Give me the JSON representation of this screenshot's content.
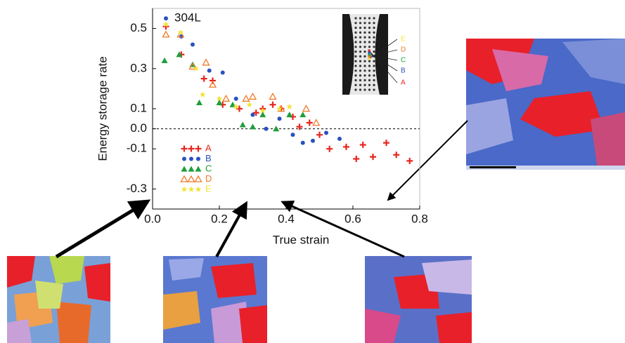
{
  "chart_data": {
    "type": "scatter",
    "annotation": "304L",
    "xlabel": "True strain",
    "ylabel": "Energy storage rate",
    "xlim": [
      0,
      0.8
    ],
    "ylim": [
      -0.4,
      0.6
    ],
    "xticks": [
      {
        "value": 0,
        "label": "0.0"
      },
      0.2,
      0.4,
      0.6,
      0.8
    ],
    "yticks": [
      0.5,
      0.3,
      0.1,
      {
        "value": 0,
        "label": "0.0"
      },
      -0.1,
      -0.3
    ],
    "zero_line": true,
    "legend": "lower left",
    "series": [
      {
        "name": "A",
        "color": "#e8251f",
        "marker": "plus",
        "x": [
          0.04,
          0.086,
          0.154,
          0.18,
          0.21,
          0.26,
          0.31,
          0.33,
          0.36,
          0.385,
          0.42,
          0.44,
          0.47,
          0.5,
          0.53,
          0.58,
          0.61,
          0.63,
          0.66,
          0.7,
          0.73,
          0.77
        ],
        "values": [
          0.51,
          0.37,
          0.25,
          0.24,
          0.12,
          0.1,
          0.08,
          0.1,
          0.12,
          0.1,
          0.06,
          0.01,
          0.03,
          -0.03,
          -0.1,
          -0.09,
          -0.15,
          -0.08,
          -0.14,
          -0.07,
          -0.13,
          -0.16
        ]
      },
      {
        "name": "B",
        "color": "#2a52be",
        "marker": "circle",
        "x": [
          0.04,
          0.086,
          0.12,
          0.17,
          0.21,
          0.25,
          0.3,
          0.34,
          0.38,
          0.42,
          0.45,
          0.48,
          0.52,
          0.56
        ],
        "values": [
          0.55,
          0.46,
          0.42,
          0.29,
          0.28,
          0.15,
          0.07,
          0.0,
          0.05,
          -0.03,
          -0.07,
          -0.06,
          -0.02,
          -0.05
        ]
      },
      {
        "name": "C",
        "color": "#1f9e3a",
        "marker": "triangle",
        "x": [
          0.036,
          0.08,
          0.12,
          0.14,
          0.2,
          0.24,
          0.27,
          0.3,
          0.33,
          0.37,
          0.41,
          0.45
        ],
        "values": [
          0.34,
          0.37,
          0.32,
          0.13,
          0.13,
          0.12,
          0.02,
          0.01,
          0.07,
          0.0,
          0.07,
          0.07
        ]
      },
      {
        "name": "D",
        "color": "#f07a2a",
        "marker": "triangle-open",
        "x": [
          0.04,
          0.084,
          0.12,
          0.16,
          0.18,
          0.22,
          0.28,
          0.3,
          0.36,
          0.385,
          0.46,
          0.49
        ],
        "values": [
          0.47,
          0.47,
          0.31,
          0.33,
          0.22,
          0.15,
          0.15,
          0.16,
          0.16,
          0.1,
          0.1,
          0.03
        ]
      },
      {
        "name": "E",
        "color": "#f2e33a",
        "marker": "star",
        "x": [
          0.04,
          0.084,
          0.13,
          0.15,
          0.2,
          0.25,
          0.29,
          0.33,
          0.38,
          0.41
        ],
        "values": [
          0.52,
          0.48,
          0.3,
          0.17,
          0.15,
          0.11,
          0.12,
          0.09,
          0.1,
          0.11
        ]
      }
    ]
  }
}
